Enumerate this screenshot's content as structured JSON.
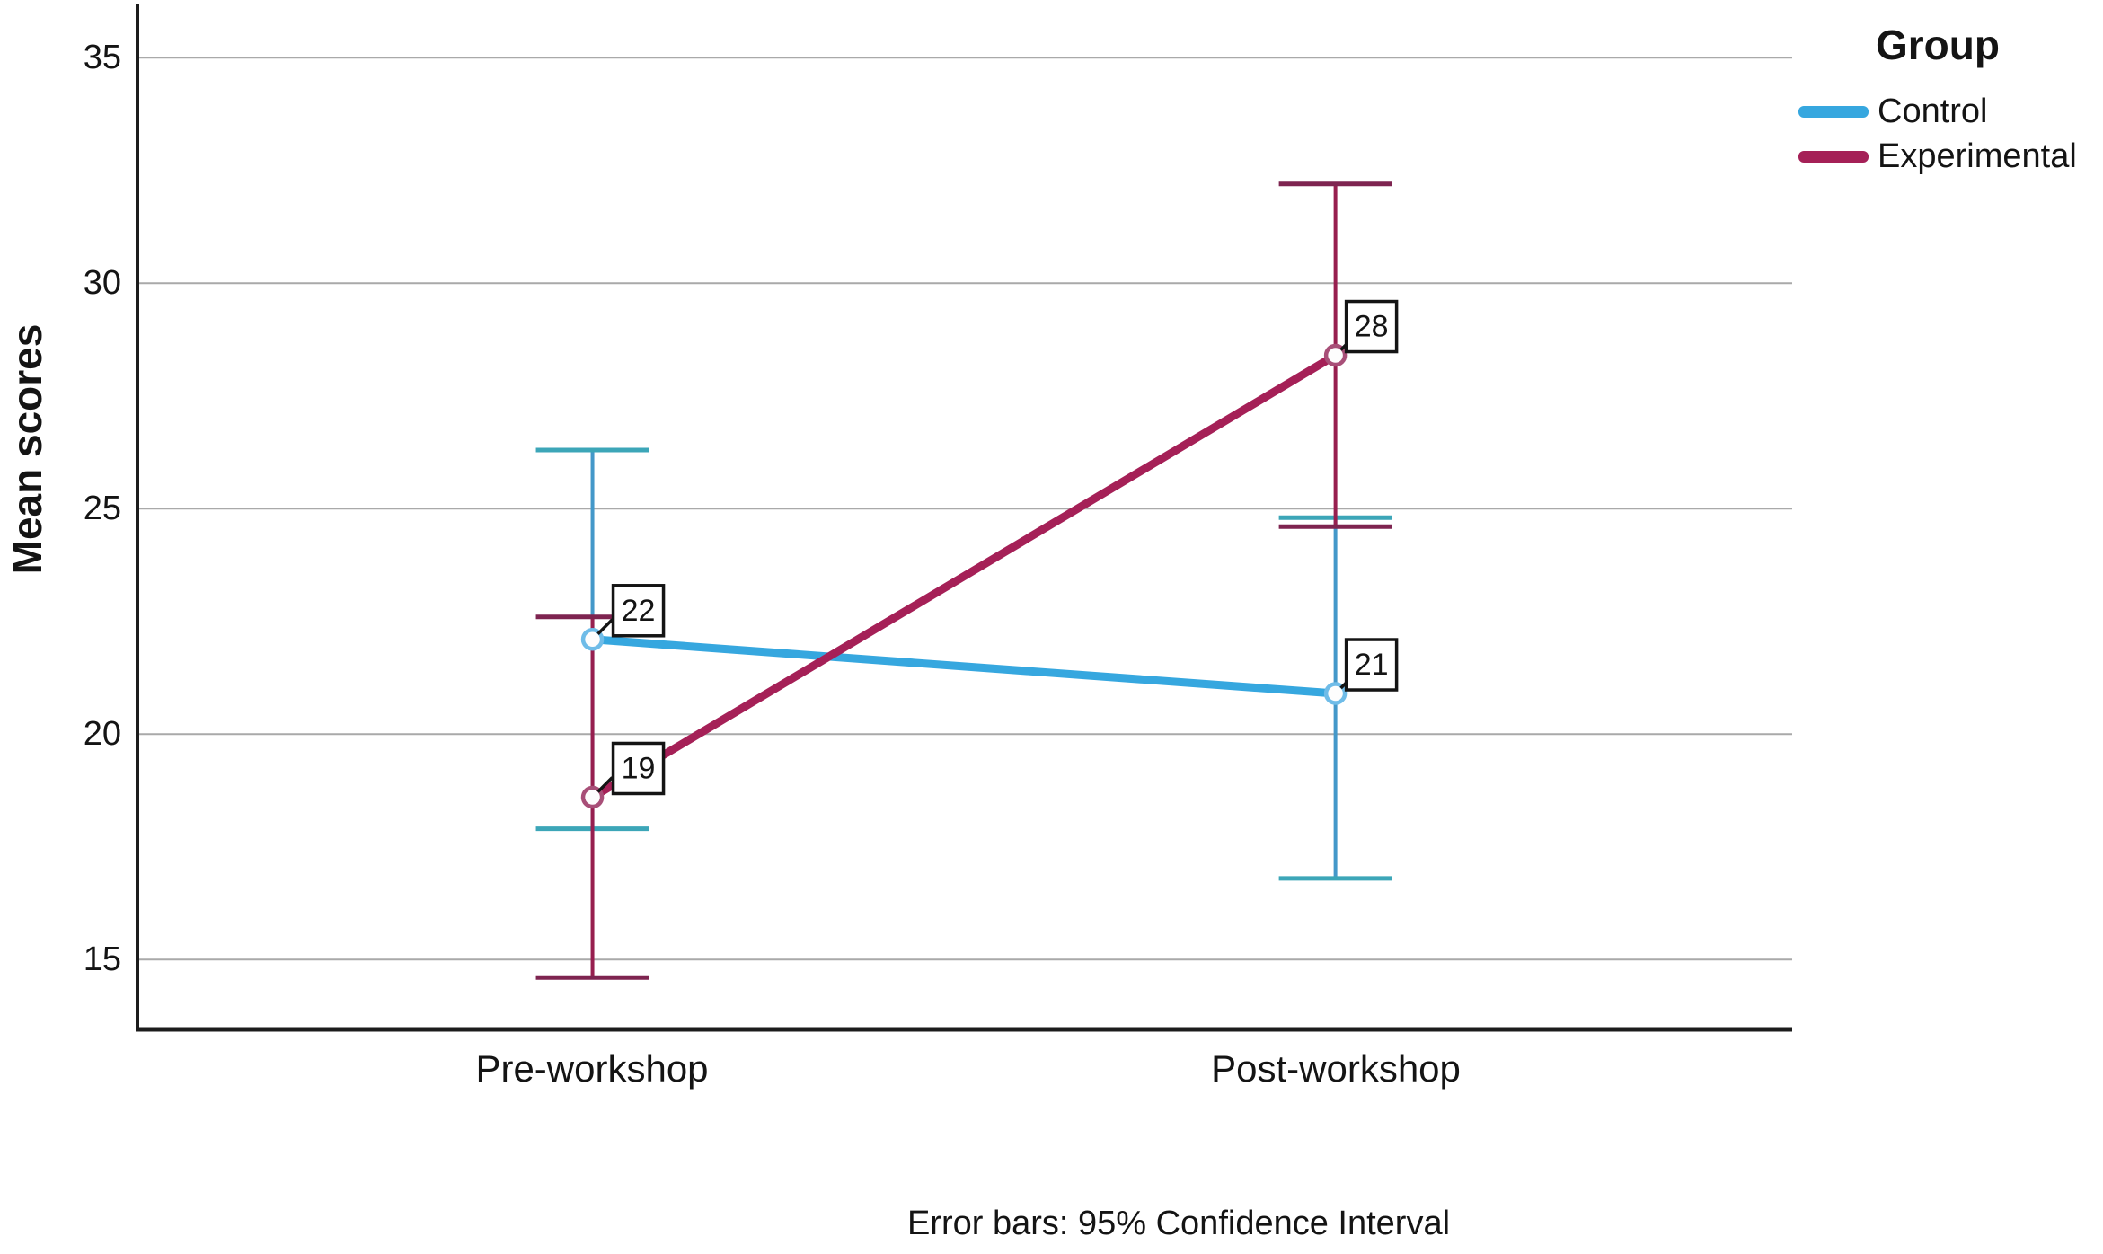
{
  "chart_data": {
    "type": "line",
    "title": "",
    "categories": [
      "Pre-workshop",
      "Post-workshop"
    ],
    "ylabel": "Mean scores",
    "ylim": [
      13.45,
      36.2
    ],
    "yticks": [
      15,
      20,
      25,
      30,
      35
    ],
    "grid": true,
    "legend_title": "Group",
    "legend_position": "top-right",
    "caption": "Error bars: 95% Confidence Interval",
    "gridline_color": "#A9A9A9",
    "axis_color": "#1C1C1C",
    "series": [
      {
        "name": "Control",
        "color": "#36A7DF",
        "error_color": "#4498C9",
        "cap_color": "#3CA6B8",
        "marker_color": "#6FBCE8",
        "means": [
          22.1,
          20.9
        ],
        "ci_low": [
          17.9,
          16.8
        ],
        "ci_high": [
          26.3,
          24.8
        ],
        "point_labels": [
          "22",
          "21"
        ]
      },
      {
        "name": "Experimental",
        "color": "#A52057",
        "error_color": "#971F4F",
        "cap_color": "#7E2450",
        "marker_color": "#A84F78",
        "means": [
          18.6,
          28.4
        ],
        "ci_low": [
          14.6,
          24.6
        ],
        "ci_high": [
          22.6,
          32.2
        ],
        "point_labels": [
          "19",
          "28"
        ]
      }
    ]
  }
}
